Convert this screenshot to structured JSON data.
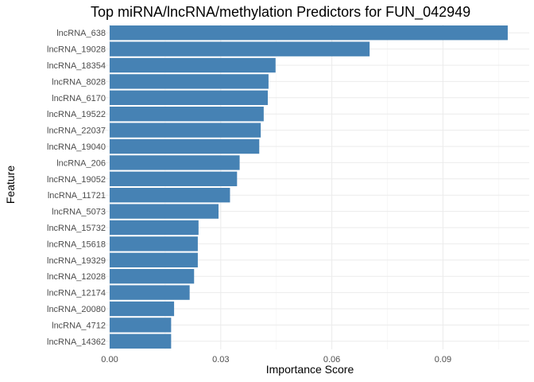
{
  "chart_data": {
    "type": "bar",
    "orientation": "horizontal",
    "title": "Top miRNA/lncRNA/methylation Predictors for FUN_042949",
    "xlabel": "Importance Score",
    "ylabel": "Feature",
    "xlim": [
      0,
      0.1095
    ],
    "xticks": [
      0.0,
      0.03,
      0.06,
      0.09
    ],
    "xtick_labels": [
      "0.00",
      "0.03",
      "0.06",
      "0.09"
    ],
    "grid": true,
    "bar_color": "#4682B4",
    "categories": [
      "lncRNA_638",
      "lncRNA_19028",
      "lncRNA_18354",
      "lncRNA_8028",
      "lncRNA_6170",
      "lncRNA_19522",
      "lncRNA_22037",
      "lncRNA_19040",
      "lncRNA_206",
      "lncRNA_19052",
      "lncRNA_11721",
      "lncRNA_5073",
      "lncRNA_15732",
      "lncRNA_15618",
      "lncRNA_19329",
      "lncRNA_12028",
      "lncRNA_12174",
      "lncRNA_20080",
      "lncRNA_4712",
      "lncRNA_14362"
    ],
    "values": [
      0.1075,
      0.0702,
      0.0448,
      0.0429,
      0.0427,
      0.0416,
      0.0408,
      0.0404,
      0.0351,
      0.0344,
      0.0325,
      0.0294,
      0.024,
      0.0238,
      0.0238,
      0.0228,
      0.0216,
      0.0174,
      0.0166,
      0.0166
    ]
  }
}
